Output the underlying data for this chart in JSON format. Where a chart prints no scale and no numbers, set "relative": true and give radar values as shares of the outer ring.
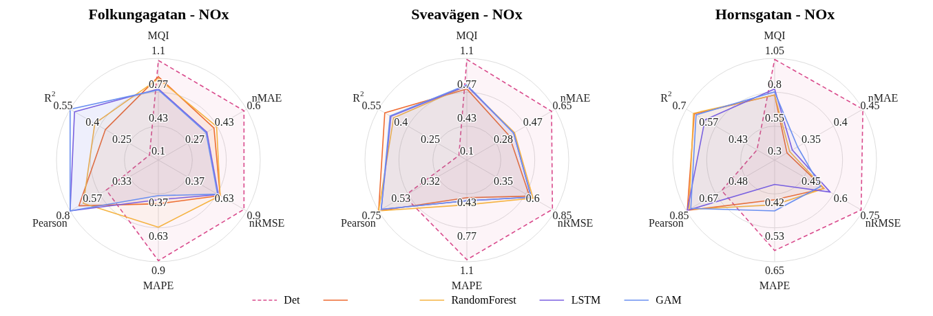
{
  "chart_data": [
    {
      "type": "radar",
      "relative": true,
      "grid": true,
      "title": "Folkungagatan - NOx",
      "categories": [
        "MQI",
        "nMAE",
        "nRMSE",
        "MAPE",
        "Pearson",
        "R$^{2}$"
      ],
      "annotations": [
        "0.1",
        "0.43",
        "0.77",
        "1.1",
        "0.27",
        "0.43",
        "0.6",
        "0.37",
        "0.63",
        "0.9",
        "0.37",
        "0.63",
        "0.9",
        "0.33",
        "0.57",
        "0.8",
        "0.25",
        "0.4",
        "0.55"
      ],
      "series": [
        {
          "color": "#d94a8c",
          "line_style": "dashed",
          "values": [
            0.98,
            0.97,
            0.97,
            0.99,
            0.59,
            0.1
          ]
        },
        {
          "color": "#ee6a30",
          "values": [
            0.82,
            0.63,
            0.7,
            0.43,
            0.9,
            0.6
          ]
        },
        {
          "color": "#f5b342",
          "values": [
            0.8,
            0.66,
            0.7,
            0.66,
            0.85,
            0.72
          ]
        },
        {
          "color": "#7b5fe0",
          "values": [
            0.7,
            0.55,
            0.68,
            0.39,
            1.0,
            0.95
          ]
        },
        {
          "color": "#6a8ff0",
          "values": [
            0.69,
            0.54,
            0.67,
            0.35,
            1.0,
            1.0
          ]
        }
      ]
    },
    {
      "type": "radar",
      "relative": true,
      "grid": true,
      "legend": "bottom",
      "title": "Sveavägen - NOx",
      "categories": [
        "MQI",
        "nMAE",
        "nRMSE",
        "MAPE",
        "Pearson",
        "R$^{2}$"
      ],
      "annotations": [
        "0.1",
        "0.43",
        "0.77",
        "1.1",
        "0.28",
        "0.47",
        "0.65",
        "0.35",
        "0.6",
        "0.85",
        "0.43",
        "0.77",
        "1.1",
        "0.32",
        "0.53",
        "0.75",
        "0.25",
        "0.4",
        "0.55"
      ],
      "series": [
        {
          "name": "Det",
          "color": "#d94a8c",
          "line_style": "dashed",
          "values": [
            0.99,
            0.96,
            0.97,
            0.98,
            0.71,
            0.09
          ]
        },
        {
          "color": "#ee6a30",
          "values": [
            0.7,
            0.48,
            0.71,
            0.37,
            1.0,
            0.93
          ]
        },
        {
          "name": "RandomForest",
          "color": "#f5b342",
          "values": [
            0.73,
            0.54,
            0.75,
            0.44,
            1.0,
            0.83
          ]
        },
        {
          "name": "LSTM",
          "color": "#7b5fe0",
          "values": [
            0.73,
            0.53,
            0.73,
            0.4,
            0.97,
            0.86
          ]
        },
        {
          "name": "GAM",
          "color": "#6a8ff0",
          "values": [
            0.74,
            0.53,
            0.73,
            0.4,
            0.97,
            0.87
          ]
        }
      ]
    },
    {
      "type": "radar",
      "relative": true,
      "grid": true,
      "title": "Hornsgatan - NOx",
      "categories": [
        "MQI",
        "nMAE",
        "nRMSE",
        "MAPE",
        "Pearson",
        "R$^{2}$"
      ],
      "annotations": [
        "0.3",
        "0.55",
        "0.8",
        "1.05",
        "0.35",
        "0.4",
        "0.45",
        "0.45",
        "0.6",
        "0.75",
        "0.42",
        "0.53",
        "0.65",
        "0.48",
        "0.67",
        "0.85",
        "0.43",
        "0.57",
        "0.7"
      ],
      "series": [
        {
          "color": "#d94a8c",
          "line_style": "dashed",
          "values": [
            0.99,
            1.0,
            0.98,
            0.89,
            0.6,
            0.2
          ]
        },
        {
          "color": "#ee6a30",
          "values": [
            0.64,
            0.14,
            0.56,
            0.39,
            0.99,
            0.91
          ]
        },
        {
          "color": "#f5b342",
          "values": [
            0.64,
            0.17,
            0.56,
            0.44,
            0.97,
            0.92
          ]
        },
        {
          "color": "#7b5fe0",
          "values": [
            0.7,
            0.2,
            0.63,
            0.24,
            0.99,
            0.79
          ]
        },
        {
          "color": "#6a8ff0",
          "values": [
            0.67,
            0.26,
            0.52,
            0.5,
            0.95,
            0.89
          ]
        }
      ]
    }
  ]
}
